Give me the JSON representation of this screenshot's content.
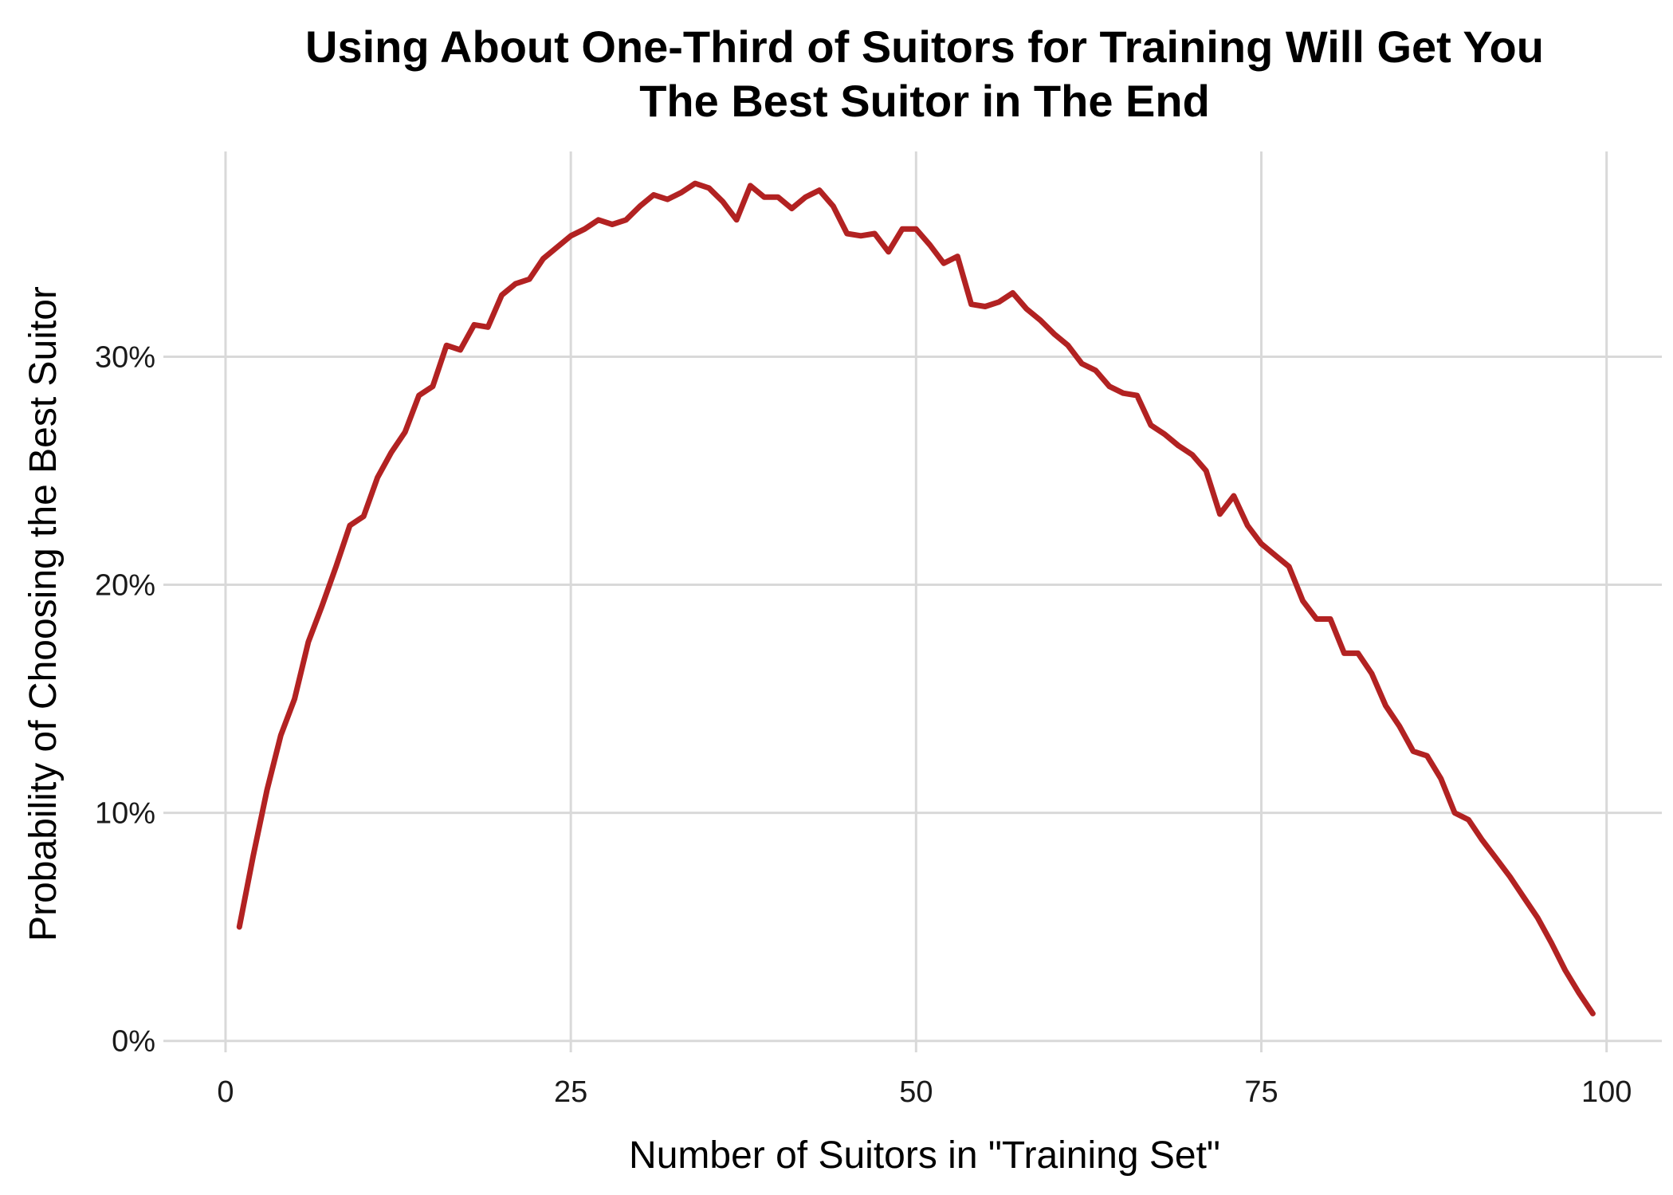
{
  "chart_data": {
    "type": "line",
    "title_lines": [
      "Using About One-Third of Suitors for Training Will Get You",
      "The Best Suitor in The End"
    ],
    "xlabel": "Number of Suitors in \"Training Set\"",
    "ylabel": "Probability of Choosing the Best Suitor",
    "xlim": [
      -4.5,
      104
    ],
    "ylim": [
      -0.005,
      0.39
    ],
    "x_ticks": [
      {
        "value": 0,
        "label": "0"
      },
      {
        "value": 25,
        "label": "25"
      },
      {
        "value": 50,
        "label": "50"
      },
      {
        "value": 75,
        "label": "75"
      },
      {
        "value": 100,
        "label": "100"
      }
    ],
    "y_ticks": [
      {
        "value": 0,
        "label": "0%"
      },
      {
        "value": 0.1,
        "label": "10%"
      },
      {
        "value": 0.2,
        "label": "20%"
      },
      {
        "value": 0.3,
        "label": "30%"
      }
    ],
    "grid": true,
    "legend": "none",
    "line_color": "#b22222",
    "series": [
      {
        "x": [
          1,
          2,
          3,
          4,
          5,
          6,
          7,
          8,
          9,
          10,
          11,
          12,
          13,
          14,
          15,
          16,
          17,
          18,
          19,
          20,
          21,
          22,
          23,
          24,
          25,
          26,
          27,
          28,
          29,
          30,
          31,
          32,
          33,
          34,
          35,
          36,
          37,
          38,
          39,
          40,
          41,
          42,
          43,
          44,
          45,
          46,
          47,
          48,
          49,
          50,
          51,
          52,
          53,
          54,
          55,
          56,
          57,
          58,
          59,
          60,
          61,
          62,
          63,
          64,
          65,
          66,
          67,
          68,
          69,
          70,
          71,
          72,
          73,
          74,
          75,
          76,
          77,
          78,
          79,
          80,
          81,
          82,
          83,
          84,
          85,
          86,
          87,
          88,
          89,
          90,
          91,
          92,
          93,
          94,
          95,
          96,
          97,
          98,
          99
        ],
        "values": [
          0.05,
          0.081,
          0.11,
          0.134,
          0.15,
          0.175,
          0.191,
          0.208,
          0.226,
          0.23,
          0.247,
          0.258,
          0.267,
          0.283,
          0.287,
          0.305,
          0.303,
          0.314,
          0.313,
          0.327,
          0.332,
          0.334,
          0.343,
          0.348,
          0.353,
          0.356,
          0.36,
          0.358,
          0.36,
          0.366,
          0.371,
          0.369,
          0.372,
          0.376,
          0.374,
          0.368,
          0.36,
          0.375,
          0.37,
          0.37,
          0.365,
          0.37,
          0.373,
          0.366,
          0.354,
          0.353,
          0.354,
          0.346,
          0.356,
          0.356,
          0.349,
          0.341,
          0.344,
          0.323,
          0.322,
          0.324,
          0.328,
          0.321,
          0.316,
          0.31,
          0.305,
          0.297,
          0.294,
          0.287,
          0.284,
          0.283,
          0.27,
          0.266,
          0.261,
          0.257,
          0.25,
          0.231,
          0.239,
          0.226,
          0.218,
          0.213,
          0.208,
          0.193,
          0.185,
          0.185,
          0.17,
          0.17,
          0.161,
          0.147,
          0.138,
          0.127,
          0.125,
          0.115,
          0.1,
          0.097,
          0.088,
          0.08,
          0.072,
          0.063,
          0.054,
          0.043,
          0.031,
          0.021,
          0.012
        ]
      }
    ]
  }
}
